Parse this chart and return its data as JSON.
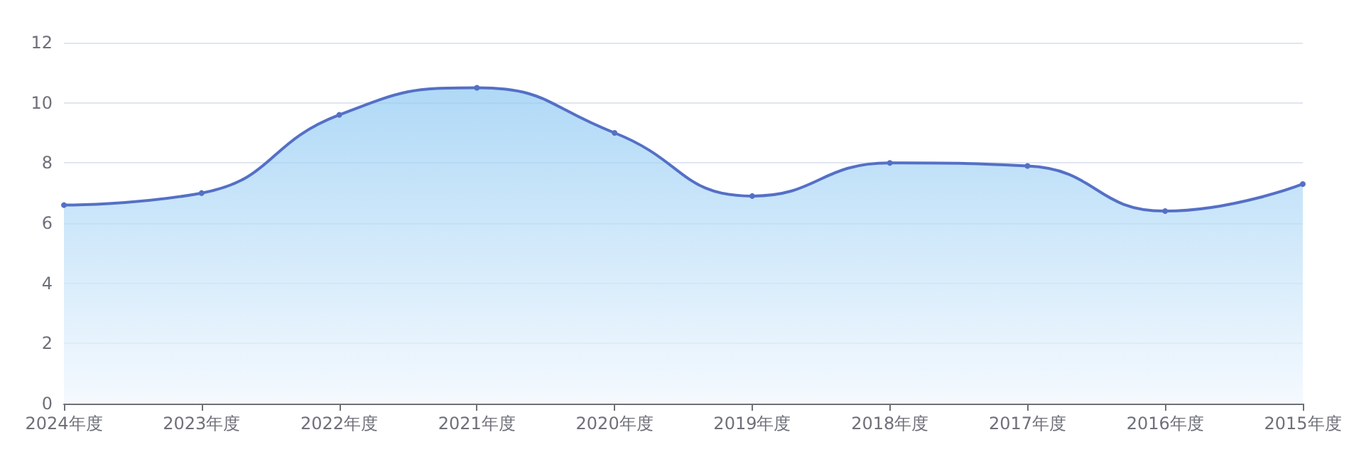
{
  "chart_data": {
    "type": "area",
    "categories": [
      "2024年度",
      "2023年度",
      "2022年度",
      "2021年度",
      "2020年度",
      "2019年度",
      "2018年度",
      "2017年度",
      "2016年度",
      "2015年度"
    ],
    "series": [
      {
        "color": "#5470c6",
        "values": [
          6.6,
          7.0,
          9.6,
          10.5,
          9.0,
          6.9,
          8.0,
          7.9,
          6.4,
          7.3
        ]
      }
    ],
    "ylim": [
      0,
      12
    ],
    "yticks": [
      0,
      2,
      4,
      6,
      8,
      10,
      12
    ],
    "grid": "y",
    "marker": "circle",
    "line_style": "solid"
  }
}
